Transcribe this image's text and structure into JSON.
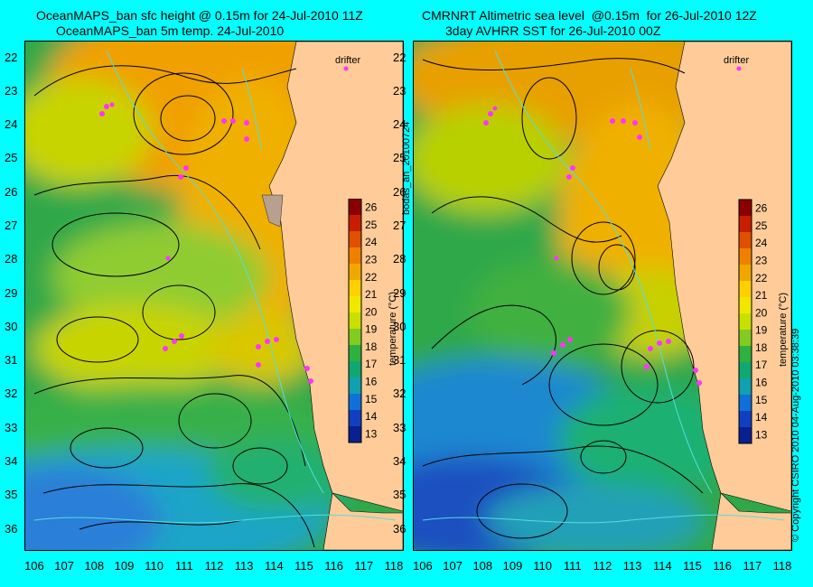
{
  "left_panel": {
    "title_line1": "OceanMAPS_ban sfc height @ 0.15m for 24-Jul-2010 11Z",
    "title_line2": "OceanMAPS_ban 5m temp. 24-Jul-2010"
  },
  "right_panel": {
    "title_line1": "CMRNRT Altimetric sea level  @0.15m  for 26-Jul-2010 12Z",
    "title_line2": "3day AVHRR SST for 26-Jul-2010 00Z"
  },
  "drifter_label": "drifter",
  "side_label": "bodas_an_20100724",
  "copyright": "© Copyright CSIRO 2010  04-Aug-2010 03:38:39",
  "colorbar": {
    "title": "temperature (°C)",
    "min": 12.5,
    "max": 26.5,
    "ticks": [
      "26",
      "25",
      "24",
      "23",
      "22",
      "21",
      "20",
      "19",
      "18",
      "17",
      "16",
      "15",
      "14",
      "13"
    ]
  },
  "map": {
    "lat_labels": [
      "22",
      "23",
      "24",
      "25",
      "26",
      "27",
      "28",
      "29",
      "30",
      "31",
      "32",
      "33",
      "34",
      "35",
      "36"
    ],
    "lon_labels": [
      "106",
      "107",
      "108",
      "109",
      "110",
      "111",
      "112",
      "113",
      "114",
      "115",
      "116",
      "117",
      "118"
    ],
    "lat_range": [
      21.5,
      36.6
    ],
    "lon_range": [
      105.7,
      118.3
    ]
  },
  "colors": {
    "background": "#00ffff",
    "land": "#ffcc99",
    "drifter": "#ff33ff",
    "contour": "#000000",
    "isobath": "#55dddd"
  }
}
